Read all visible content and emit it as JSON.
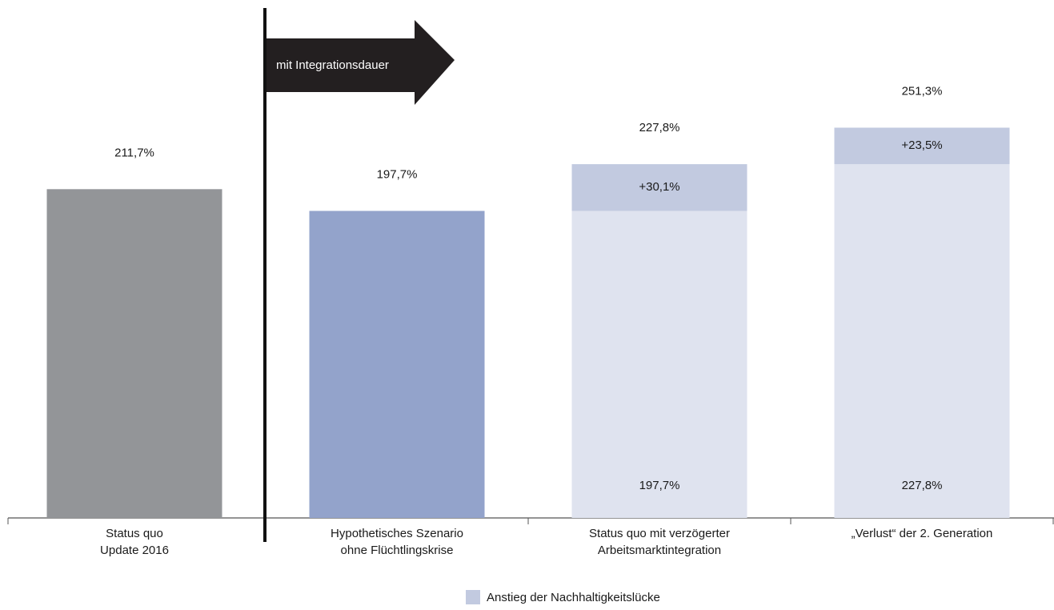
{
  "chart_data": {
    "type": "stacked_bar",
    "categories": [
      [
        "Status quo",
        "Update 2016"
      ],
      [
        "Hypothetisches Szenario",
        "ohne Flüchtlingskrise"
      ],
      [
        "Status quo mit verzögerter",
        "Arbeitsmarktintegration"
      ],
      [
        "„Verlust“ der 2. Generation"
      ]
    ],
    "series": [
      {
        "colors": [
          "#939598",
          "#93a3cb",
          "#dfe3ef",
          "#dfe3ef"
        ],
        "values": [
          211.7,
          197.7,
          197.7,
          227.8
        ],
        "value_labels": [
          "211,7%",
          "197,7%",
          "197,7%",
          "227,8%"
        ]
      },
      {
        "name": "Anstieg der Nachhaltigkeitslücke",
        "color": "#c2cae0",
        "values": [
          null,
          null,
          30.1,
          23.5
        ],
        "value_labels": [
          null,
          null,
          "+30,1%",
          "+23,5%"
        ]
      }
    ],
    "totals": [
      null,
      null,
      227.8,
      251.3
    ],
    "total_labels": [
      null,
      null,
      "227,8%",
      "251,3%"
    ],
    "annotation": "mit Integrationsdauer"
  }
}
